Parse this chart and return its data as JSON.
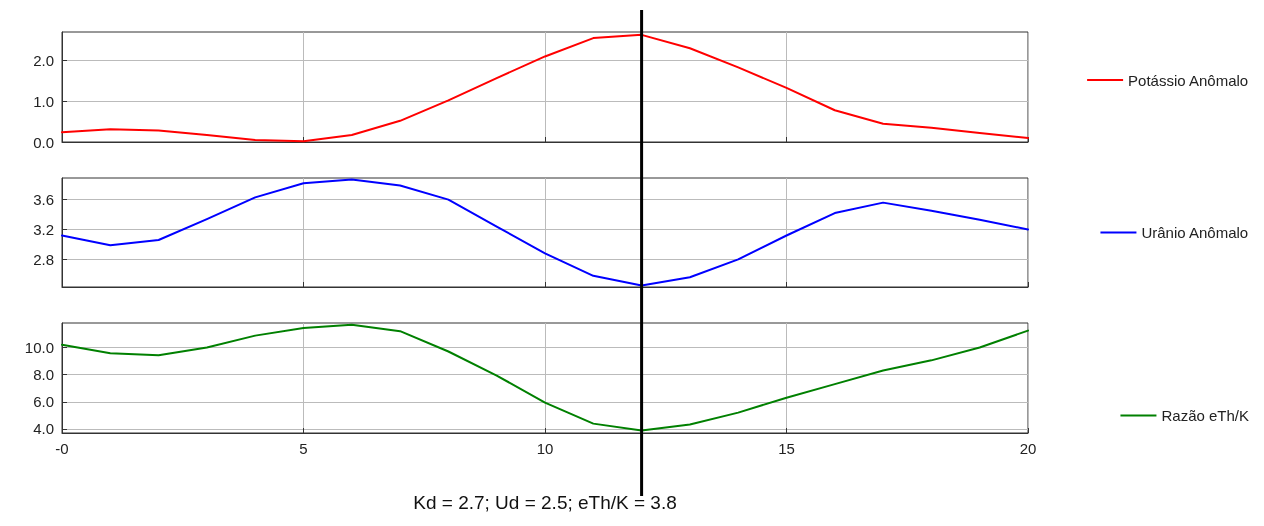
{
  "chart_data": [
    {
      "type": "line",
      "x": [
        0,
        1,
        2,
        3,
        4,
        5,
        6,
        7,
        8,
        9,
        10,
        11,
        12,
        13,
        14,
        15,
        16,
        17,
        18,
        19,
        20
      ],
      "series": [
        {
          "name": "Potássio Anômalo",
          "color": "#ff0000",
          "values": [
            0.24,
            0.31,
            0.28,
            0.17,
            0.05,
            0.02,
            0.17,
            0.52,
            1.02,
            1.57,
            2.1,
            2.55,
            2.63,
            2.3,
            1.83,
            1.33,
            0.78,
            0.45,
            0.35,
            0.22,
            0.1
          ]
        }
      ],
      "xlim": [
        0,
        20
      ],
      "xticks": [
        0,
        5,
        10,
        15,
        20
      ],
      "ylim": [
        0,
        2.7
      ],
      "yticks": [
        {
          "value": 0,
          "label": "0.0"
        },
        {
          "value": 1,
          "label": "1.0"
        },
        {
          "value": 2,
          "label": "2.0"
        }
      ],
      "grid": true,
      "legend": "right",
      "tick_labels": "y",
      "marker": "none",
      "line_style": "solid",
      "ref_lines": [
        {
          "axis": "x",
          "value": 12,
          "label": null,
          "color": "#000000"
        }
      ]
    },
    {
      "type": "line",
      "x": [
        0,
        1,
        2,
        3,
        4,
        5,
        6,
        7,
        8,
        9,
        10,
        11,
        12,
        13,
        14,
        15,
        16,
        17,
        18,
        19,
        20
      ],
      "series": [
        {
          "name": "Urânio Anômalo",
          "color": "#0000ff",
          "values": [
            3.12,
            2.99,
            3.06,
            3.34,
            3.63,
            3.82,
            3.87,
            3.79,
            3.6,
            3.24,
            2.88,
            2.58,
            2.45,
            2.56,
            2.8,
            3.12,
            3.42,
            3.56,
            3.45,
            3.33,
            3.2
          ]
        }
      ],
      "xlim": [
        0,
        20
      ],
      "xticks": [
        0,
        5,
        10,
        15,
        20
      ],
      "ylim": [
        2.43,
        3.89
      ],
      "yticks": [
        2.8,
        3.2,
        3.6
      ],
      "grid": true,
      "legend": "right",
      "tick_labels": "y",
      "marker": "none",
      "line_style": "solid",
      "ref_lines": [
        {
          "axis": "x",
          "value": 12,
          "label": null,
          "color": "#000000"
        }
      ]
    },
    {
      "type": "line",
      "x": [
        0,
        1,
        2,
        3,
        4,
        5,
        6,
        7,
        8,
        9,
        10,
        11,
        12,
        13,
        14,
        15,
        16,
        17,
        18,
        19,
        20
      ],
      "series": [
        {
          "name": "Razão eTh/K",
          "color": "#008000",
          "values": [
            10.2,
            9.58,
            9.43,
            10.0,
            10.87,
            11.43,
            11.67,
            11.2,
            9.7,
            7.93,
            5.94,
            4.39,
            3.88,
            4.32,
            5.2,
            6.3,
            7.3,
            8.3,
            9.05,
            10.0,
            11.24
          ]
        }
      ],
      "xlim": [
        0,
        20
      ],
      "xticks": [
        {
          "value": 0,
          "label": "-0"
        },
        5,
        10,
        15,
        20
      ],
      "ylim": [
        3.7,
        11.8
      ],
      "yticks": [
        {
          "value": 4,
          "label": "4.0"
        },
        {
          "value": 6,
          "label": "6.0"
        },
        {
          "value": 8,
          "label": "8.0"
        },
        {
          "value": 10,
          "label": "10.0"
        }
      ],
      "grid": true,
      "legend": "right",
      "marker": "none",
      "line_style": "solid",
      "ref_lines": [
        {
          "axis": "x",
          "value": 12,
          "label": null,
          "color": "#000000"
        }
      ],
      "annotations": [
        "Kd = 2.7; Ud = 2.5; eTh/K = 3.8"
      ]
    }
  ]
}
